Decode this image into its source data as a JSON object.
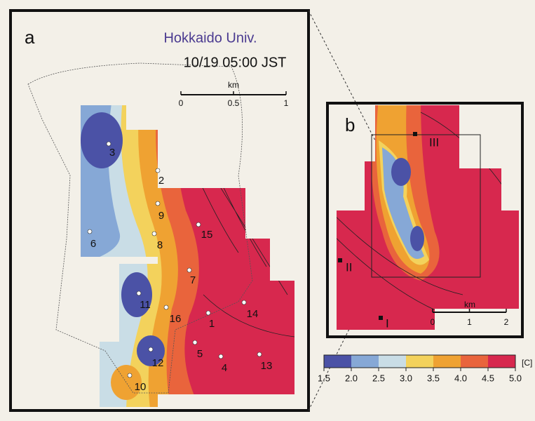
{
  "panel_a": {
    "label": "a",
    "title": "Hokkaido Univ.",
    "time": "10/19 05:00 JST",
    "scale": {
      "unit": "km",
      "ticks": [
        0,
        0.5,
        1
      ]
    },
    "stations": [
      "3",
      "2",
      "9",
      "15",
      "6",
      "8",
      "7",
      "11",
      "16",
      "1",
      "14",
      "5",
      "12",
      "4",
      "13",
      "10"
    ]
  },
  "panel_b": {
    "label": "b",
    "sites": [
      "III",
      "II",
      "I"
    ],
    "scale": {
      "unit": "km",
      "ticks": [
        0,
        1,
        2
      ]
    }
  },
  "colorbar": {
    "unit": "[C]",
    "ticks": [
      1.5,
      {
        "value": 2,
        "label": "2.0"
      },
      2.5,
      {
        "value": 3,
        "label": "3.0"
      },
      3.5,
      {
        "value": 4,
        "label": "4.0"
      },
      4.5,
      {
        "value": 5,
        "label": "5.0"
      }
    ],
    "colors": [
      "#4b52a6",
      "#86a8d6",
      "#c9dde6",
      "#f3d25c",
      "#efa232",
      "#e9643c",
      "#d7284e"
    ]
  }
}
